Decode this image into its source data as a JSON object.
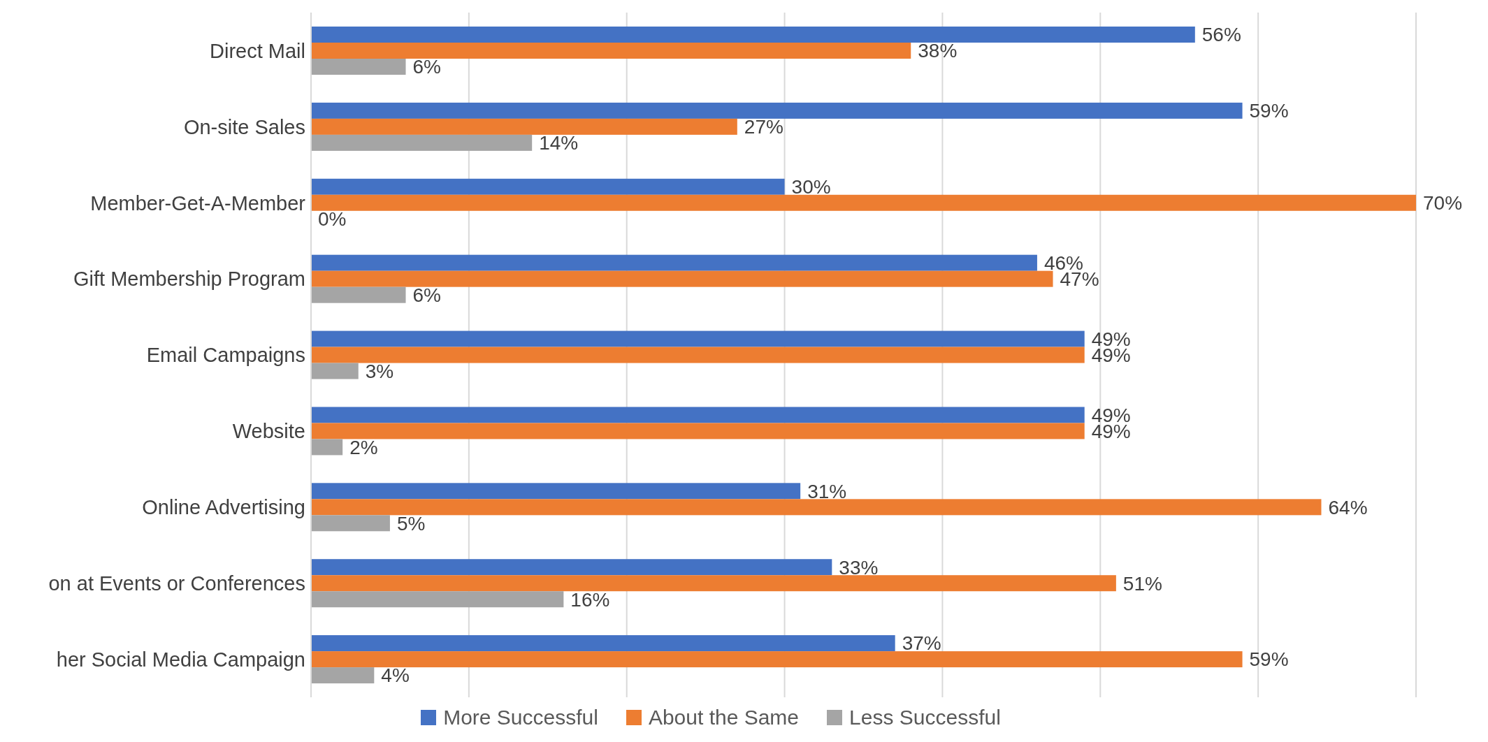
{
  "chart_data": {
    "type": "bar",
    "orientation": "horizontal",
    "categories": [
      "Direct Mail",
      "On-site Sales",
      "Member-Get-A-Member",
      "Gift Membership Program",
      "Email Campaigns",
      "Website",
      "Online Advertising",
      "on at Events or Conferences",
      "her Social Media Campaign"
    ],
    "series": [
      {
        "name": "More Successful",
        "color": "#4472c4",
        "values": [
          56,
          59,
          30,
          46,
          49,
          49,
          31,
          33,
          37
        ],
        "value_labels": [
          "56%",
          "59%",
          "30%",
          "46%",
          "49%",
          "49%",
          "31%",
          "33%",
          "37%"
        ]
      },
      {
        "name": "About the Same",
        "color": "#ed7d31",
        "values": [
          38,
          27,
          70,
          47,
          49,
          49,
          64,
          51,
          59
        ],
        "value_labels": [
          "38%",
          "27%",
          "70%",
          "47%",
          "49%",
          "49%",
          "64%",
          "51%",
          "59%"
        ]
      },
      {
        "name": "Less Successful",
        "color": "#a5a5a5",
        "values": [
          6,
          14,
          0,
          6,
          3,
          2,
          5,
          16,
          4
        ],
        "value_labels": [
          "6%",
          "14%",
          "0%",
          "6%",
          "3%",
          "2%",
          "5%",
          "16%",
          "4%"
        ]
      }
    ],
    "xlim": [
      0,
      70
    ],
    "xticks": [
      {
        "value": 0,
        "label": null
      },
      {
        "value": 10,
        "label": null
      },
      {
        "value": 20,
        "label": null
      },
      {
        "value": 30,
        "label": null
      },
      {
        "value": 40,
        "label": null
      },
      {
        "value": 50,
        "label": null
      },
      {
        "value": 60,
        "label": null
      },
      {
        "value": 70,
        "label": null
      }
    ],
    "tick_labels": "y",
    "grid": "x",
    "legend": "bottom"
  }
}
